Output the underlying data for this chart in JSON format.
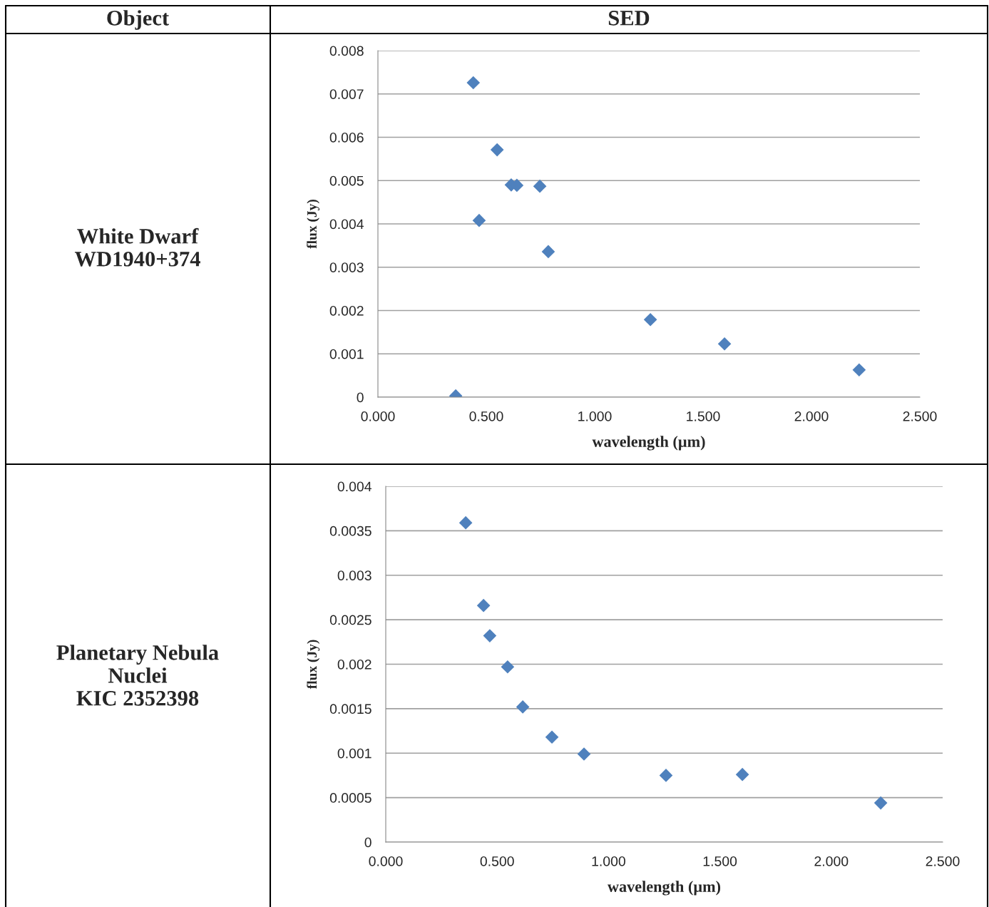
{
  "chart_data": [
    {
      "type": "other",
      "annotations": [
        "Object",
        "SED"
      ]
    },
    {
      "type": "scatter",
      "annotations": [
        "White Dwarf\nWD1940+374"
      ],
      "xlabel": "wavelength (µm)",
      "ylabel": "flux (Jy)",
      "x": [
        0.44,
        0.55,
        0.615,
        0.641,
        0.747,
        0.467,
        0.786,
        1.257,
        1.599,
        2.22,
        0.359
      ],
      "values": [
        0.00726,
        0.00571,
        0.0049,
        0.00489,
        0.00487,
        0.00408,
        0.00336,
        0.00179,
        0.00123,
        0.00063,
        3e-05
      ],
      "color": "#4f81bd",
      "marker": "diamond",
      "grid": "y",
      "legend": false,
      "xlim": [
        0,
        2.5
      ],
      "xticks": [
        {
          "value": 0,
          "label": "0.000"
        },
        {
          "value": 0.5,
          "label": "0.500"
        },
        {
          "value": 1,
          "label": "1.000"
        },
        {
          "value": 1.5,
          "label": "1.500"
        },
        {
          "value": 2,
          "label": "2.000"
        },
        {
          "value": 2.5,
          "label": "2.500"
        }
      ],
      "ylim": [
        0,
        0.008
      ],
      "yticks": [
        0,
        0.001,
        0.002,
        0.003,
        0.004,
        0.005,
        0.006,
        0.007,
        0.008
      ]
    },
    {
      "type": "scatter",
      "annotations": [
        "Planetary Nebula\nNuclei\nKIC 2352398"
      ],
      "xlabel": "wavelength (µm)",
      "ylabel": "flux (Jy)",
      "x": [
        0.359,
        0.439,
        0.467,
        0.547,
        0.615,
        0.746,
        0.89,
        1.258,
        1.601,
        2.222
      ],
      "values": [
        0.00359,
        0.00266,
        0.00232,
        0.00197,
        0.00152,
        0.00118,
        0.00099,
        0.00075,
        0.00076,
        0.00044
      ],
      "color": "#4f81bd",
      "marker": "diamond",
      "grid": "y",
      "legend": false,
      "xlim": [
        0,
        2.5
      ],
      "xticks": [
        {
          "value": 0,
          "label": "0.000"
        },
        {
          "value": 0.5,
          "label": "0.500"
        },
        {
          "value": 1,
          "label": "1.000"
        },
        {
          "value": 1.5,
          "label": "1.500"
        },
        {
          "value": 2,
          "label": "2.000"
        },
        {
          "value": 2.5,
          "label": "2.500"
        }
      ],
      "ylim": [
        0,
        0.004
      ],
      "yticks": [
        0,
        0.0005,
        0.001,
        0.0015,
        0.002,
        0.0025,
        0.003,
        0.0035,
        0.004
      ]
    }
  ]
}
